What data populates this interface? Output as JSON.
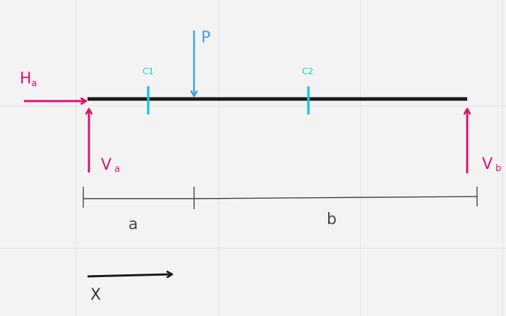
{
  "colors": {
    "background": "#f3f3f3",
    "grid": "#e2e2e2",
    "beam": "#1a1a1a",
    "reaction": "#e0106e",
    "load": "#3aa0e8",
    "section": "#1ec8d4",
    "dimension": "#444444"
  },
  "labels": {
    "horizontal_reaction_main": "H",
    "horizontal_reaction_sub": "a",
    "vertical_reaction_a_main": "V",
    "vertical_reaction_a_sub": "a",
    "vertical_reaction_b_main": "V",
    "vertical_reaction_b_sub": "b",
    "point_load": "P",
    "section_1": "C1",
    "section_2": "C2",
    "dimension_a": "a",
    "dimension_b": "b",
    "x_axis": "X"
  }
}
